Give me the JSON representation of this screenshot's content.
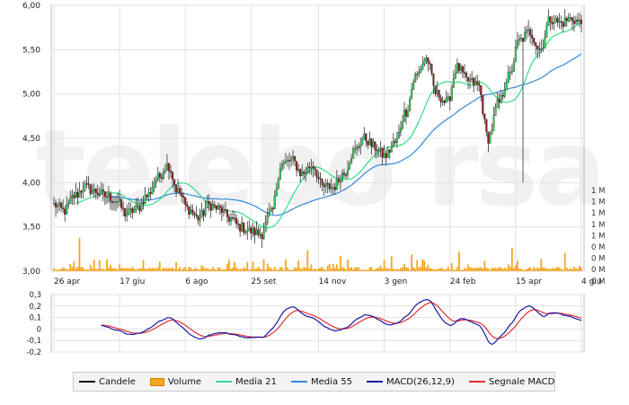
{
  "watermark": "telebo rsa",
  "chart_data": [
    {
      "type": "candlestick",
      "panel": "price",
      "y_ticks": [
        "6,00",
        "5,50",
        "5,00",
        "4,50",
        "4,00",
        "3,50",
        "3,00"
      ],
      "ylim": [
        3.0,
        6.0
      ],
      "x_ticks": [
        "26 apr",
        "17 giu",
        "6 ago",
        "25 set",
        "14 nov",
        "3 gen",
        "24 feb",
        "15 apr",
        "4 giu"
      ],
      "grid": true,
      "volume_ticks": [
        "1 M",
        "1 M",
        "1 M",
        "1 M",
        "1 M",
        "0 M",
        "0 M",
        "0 M",
        "0 M"
      ],
      "close_keypoints": [
        {
          "week": 0,
          "close": 3.75
        },
        {
          "week": 1,
          "close": 3.68
        },
        {
          "week": 2,
          "close": 3.85
        },
        {
          "week": 3,
          "close": 3.95
        },
        {
          "week": 4,
          "close": 3.9
        },
        {
          "week": 5,
          "close": 3.85
        },
        {
          "week": 6,
          "close": 3.8
        },
        {
          "week": 7,
          "close": 3.65
        },
        {
          "week": 8,
          "close": 3.7
        },
        {
          "week": 9,
          "close": 3.85
        },
        {
          "week": 10,
          "close": 4.05
        },
        {
          "week": 11,
          "close": 4.2
        },
        {
          "week": 12,
          "close": 3.9
        },
        {
          "week": 13,
          "close": 3.7
        },
        {
          "week": 14,
          "close": 3.6
        },
        {
          "week": 15,
          "close": 3.75
        },
        {
          "week": 16,
          "close": 3.7
        },
        {
          "week": 17,
          "close": 3.6
        },
        {
          "week": 18,
          "close": 3.5
        },
        {
          "week": 19,
          "close": 3.45
        },
        {
          "week": 20,
          "close": 3.42
        },
        {
          "week": 21,
          "close": 3.65
        },
        {
          "week": 22,
          "close": 4.2
        },
        {
          "week": 23,
          "close": 4.25
        },
        {
          "week": 24,
          "close": 4.1
        },
        {
          "week": 25,
          "close": 4.2
        },
        {
          "week": 26,
          "close": 3.95
        },
        {
          "week": 27,
          "close": 3.95
        },
        {
          "week": 28,
          "close": 4.1
        },
        {
          "week": 29,
          "close": 4.35
        },
        {
          "week": 30,
          "close": 4.5
        },
        {
          "week": 31,
          "close": 4.4
        },
        {
          "week": 32,
          "close": 4.3
        },
        {
          "week": 33,
          "close": 4.45
        },
        {
          "week": 34,
          "close": 4.8
        },
        {
          "week": 35,
          "close": 5.2
        },
        {
          "week": 36,
          "close": 5.4
        },
        {
          "week": 37,
          "close": 5.0
        },
        {
          "week": 38,
          "close": 4.9
        },
        {
          "week": 39,
          "close": 5.3
        },
        {
          "week": 40,
          "close": 5.15
        },
        {
          "week": 41,
          "close": 5.1
        },
        {
          "week": 42,
          "close": 4.5
        },
        {
          "week": 43,
          "close": 4.9
        },
        {
          "week": 44,
          "close": 5.2
        },
        {
          "week": 45,
          "close": 5.6
        },
        {
          "week": 46,
          "close": 5.7
        },
        {
          "week": 47,
          "close": 5.5
        },
        {
          "week": 48,
          "close": 5.85
        },
        {
          "week": 49,
          "close": 5.8
        },
        {
          "week": 50,
          "close": 5.85
        },
        {
          "week": 51,
          "close": 5.8
        }
      ],
      "series": [
        {
          "name": "Candele",
          "color": "#000000"
        },
        {
          "name": "Volume",
          "color": "#f5a623"
        },
        {
          "name": "Media 21",
          "color": "#33dd88"
        },
        {
          "name": "Media 55",
          "color": "#3388dd"
        }
      ]
    },
    {
      "type": "line",
      "panel": "macd",
      "y_ticks": [
        "0,3",
        "0,2",
        "0,1",
        "0",
        "-0,1",
        "-0,2"
      ],
      "ylim": [
        -0.2,
        0.3
      ],
      "series": [
        {
          "name": "MACD(26,12,9)",
          "color": "#1a1aa8"
        },
        {
          "name": "Segnale MACD",
          "color": "#e03030"
        }
      ]
    }
  ],
  "legend": [
    {
      "label": "Candele",
      "kind": "line",
      "color": "#000000"
    },
    {
      "label": "Volume",
      "kind": "box",
      "color": "#f5a623"
    },
    {
      "label": "Media 21",
      "kind": "line",
      "color": "#33dd88"
    },
    {
      "label": "Media 55",
      "kind": "line",
      "color": "#3388dd"
    },
    {
      "label": "MACD(26,12,9)",
      "kind": "line",
      "color": "#1a1aa8"
    },
    {
      "label": "Segnale MACD",
      "kind": "line",
      "color": "#e03030"
    }
  ]
}
